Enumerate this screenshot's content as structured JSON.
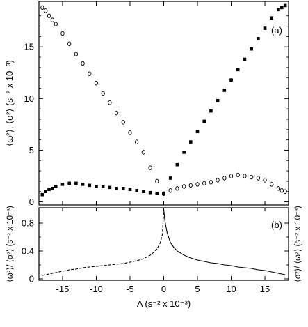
{
  "chart_data": [
    {
      "type": "scatter",
      "panel_label": "(a)",
      "ylabel": "⟨ω²⟩, ⟨σ²⟩ (s⁻² x 10⁻³)",
      "xlim": [
        -18.5,
        18.5
      ],
      "ylim": [
        -0.3,
        19.4
      ],
      "grid": false,
      "legend": "none",
      "yticks": [
        0,
        5,
        10,
        15
      ],
      "series": [
        {
          "marker": "open-circle",
          "x": [
            -18.0,
            -17.5,
            -17.0,
            -16.5,
            -16.0,
            -15.0,
            -14.0,
            -13.0,
            -12.0,
            -11.0,
            -10.0,
            -9.0,
            -8.0,
            -7.0,
            -6.0,
            -5.0,
            -4.0,
            -3.0,
            -2.0,
            -1.0,
            0.0,
            1.0,
            2.0,
            3.0,
            4.0,
            5.0,
            6.0,
            7.0,
            8.0,
            9.0,
            10.0,
            11.0,
            12.0,
            13.0,
            14.0,
            15.0,
            16.0,
            17.0,
            17.5,
            18.0
          ],
          "y": [
            18.8,
            18.5,
            18.0,
            17.6,
            17.2,
            16.3,
            15.3,
            14.3,
            13.4,
            12.4,
            11.5,
            10.5,
            9.6,
            8.6,
            7.7,
            6.7,
            5.8,
            4.8,
            3.3,
            2.0,
            0.8,
            1.1,
            1.3,
            1.5,
            1.6,
            1.7,
            1.8,
            1.9,
            2.1,
            2.3,
            2.5,
            2.6,
            2.5,
            2.4,
            2.3,
            2.1,
            1.7,
            1.3,
            1.1,
            1.0
          ]
        },
        {
          "marker": "filled-square",
          "x": [
            -18.0,
            -17.5,
            -17.0,
            -16.5,
            -16.0,
            -15.0,
            -14.0,
            -13.0,
            -12.0,
            -11.0,
            -10.0,
            -9.0,
            -8.0,
            -7.0,
            -6.0,
            -5.0,
            -4.0,
            -3.0,
            -2.0,
            -1.0,
            0.0,
            1.0,
            2.0,
            3.0,
            4.0,
            5.0,
            6.0,
            7.0,
            8.0,
            9.0,
            10.0,
            11.0,
            12.0,
            13.0,
            14.0,
            15.0,
            16.0,
            17.0,
            17.5,
            18.0
          ],
          "y": [
            0.7,
            1.0,
            1.2,
            1.3,
            1.5,
            1.7,
            1.8,
            1.8,
            1.7,
            1.6,
            1.5,
            1.5,
            1.4,
            1.3,
            1.3,
            1.2,
            1.1,
            1.0,
            0.9,
            0.8,
            0.8,
            2.3,
            3.6,
            4.8,
            5.8,
            6.8,
            7.8,
            8.8,
            9.8,
            10.8,
            11.8,
            12.8,
            13.8,
            14.8,
            15.8,
            16.8,
            17.8,
            18.6,
            18.8,
            19.0
          ]
        }
      ]
    },
    {
      "type": "line",
      "panel_label": "(b)",
      "ylabel": "⟨ω²⟩/ ⟨σ²⟩ (s⁻² x 10⁻³)",
      "ylabel_right": "⟨σ²⟩/ ⟨ω²⟩ (s⁻² x 10⁻³)",
      "xlabel": "Λ (s⁻² x 10⁻³)",
      "xlim": [
        -18.5,
        18.5
      ],
      "ylim": [
        -0.02,
        1.02
      ],
      "grid": false,
      "legend": "none",
      "xticks": [
        -15,
        -10,
        -5,
        0,
        5,
        10,
        15
      ],
      "yticks": [
        0,
        0.4,
        0.8
      ],
      "series": [
        {
          "style": "dashed",
          "x": [
            -18.0,
            -17.0,
            -16.0,
            -15.0,
            -14.0,
            -13.0,
            -12.0,
            -11.0,
            -10.0,
            -9.0,
            -8.0,
            -7.0,
            -6.0,
            -5.0,
            -4.0,
            -3.0,
            -2.0,
            -1.5,
            -1.0,
            -0.5,
            -0.2,
            0.0
          ],
          "y": [
            0.05,
            0.07,
            0.09,
            0.11,
            0.13,
            0.14,
            0.16,
            0.17,
            0.18,
            0.19,
            0.2,
            0.21,
            0.22,
            0.24,
            0.26,
            0.29,
            0.34,
            0.38,
            0.43,
            0.52,
            0.64,
            1.0
          ]
        },
        {
          "style": "solid",
          "x": [
            0.0,
            0.2,
            0.5,
            1.0,
            1.5,
            2.0,
            3.0,
            4.0,
            5.0,
            6.0,
            7.0,
            8.0,
            9.0,
            10.0,
            11.0,
            12.0,
            13.0,
            14.0,
            15.0,
            16.0,
            17.0,
            18.0
          ],
          "y": [
            1.0,
            0.82,
            0.66,
            0.52,
            0.45,
            0.4,
            0.34,
            0.3,
            0.27,
            0.25,
            0.23,
            0.22,
            0.2,
            0.19,
            0.17,
            0.16,
            0.15,
            0.13,
            0.12,
            0.1,
            0.08,
            0.06
          ]
        }
      ]
    }
  ]
}
